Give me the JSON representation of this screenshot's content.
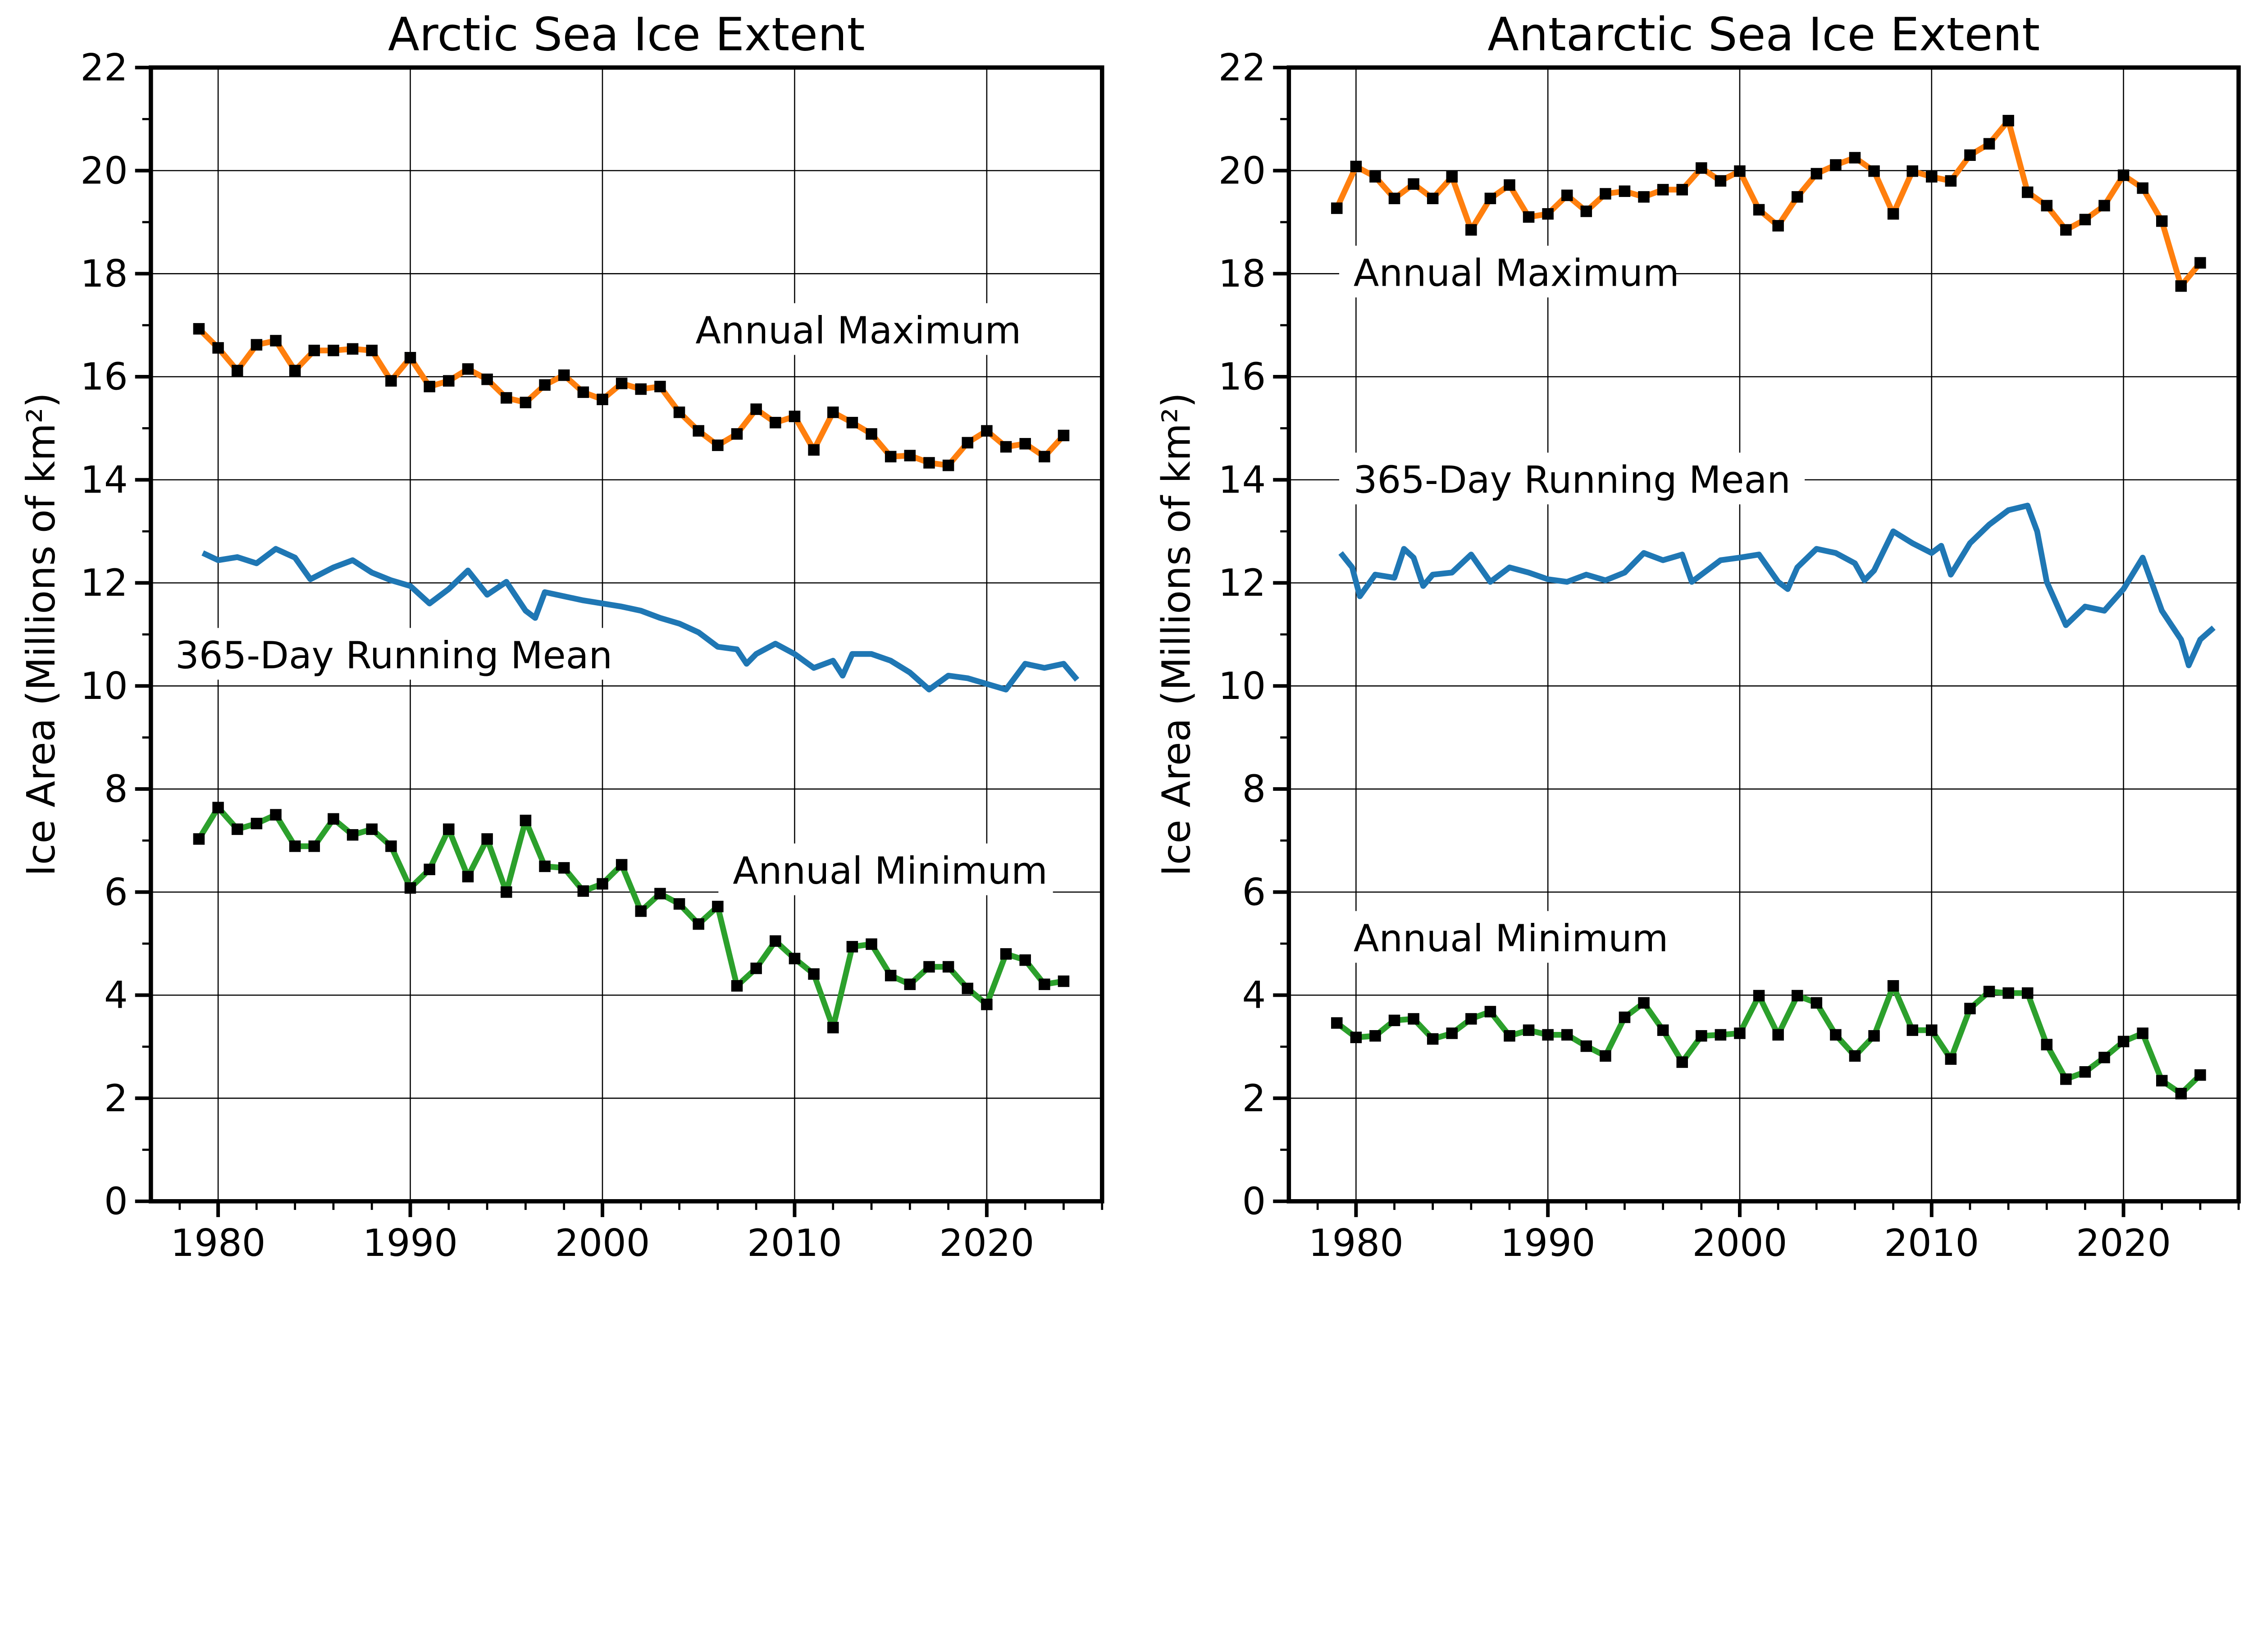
{
  "chart_data": [
    {
      "type": "line",
      "title": "Arctic Sea Ice Extent",
      "ylabel": "Ice Area (Millions of km²)",
      "xlabel": "",
      "xlim": [
        1976.5,
        2026
      ],
      "ylim": [
        0,
        22
      ],
      "xticks": [
        1980,
        1990,
        2000,
        2010,
        2020
      ],
      "yticks": [
        0,
        2,
        4,
        6,
        8,
        10,
        12,
        14,
        16,
        18,
        20,
        22
      ],
      "grid": true,
      "series": [
        {
          "name": "Annual Maximum",
          "color": "#ff7f0e",
          "markers": true,
          "x": [
            1979,
            1980,
            1981,
            1982,
            1983,
            1984,
            1985,
            1986,
            1987,
            1988,
            1989,
            1990,
            1991,
            1992,
            1993,
            1994,
            1995,
            1996,
            1997,
            1998,
            1999,
            2000,
            2001,
            2002,
            2003,
            2004,
            2005,
            2006,
            2007,
            2008,
            2009,
            2010,
            2011,
            2012,
            2013,
            2014,
            2015,
            2016,
            2017,
            2018,
            2019,
            2020,
            2021,
            2022,
            2023,
            2024
          ],
          "y": [
            16.93,
            16.56,
            16.12,
            16.62,
            16.7,
            16.12,
            16.51,
            16.51,
            16.54,
            16.51,
            15.92,
            16.37,
            15.81,
            15.92,
            16.15,
            15.95,
            15.59,
            15.5,
            15.84,
            16.03,
            15.7,
            15.56,
            15.87,
            15.76,
            15.81,
            15.31,
            14.95,
            14.67,
            14.89,
            15.37,
            15.11,
            15.23,
            14.58,
            15.31,
            15.11,
            14.89,
            14.45,
            14.47,
            14.33,
            14.28,
            14.72,
            14.95,
            14.64,
            14.7,
            14.45,
            14.86
          ]
        },
        {
          "name": "365-Day Running Mean",
          "color": "#1f77b4",
          "markers": false,
          "x": [
            1979.2,
            1980,
            1981,
            1982,
            1983,
            1984,
            1984.8,
            1986,
            1987,
            1988,
            1989,
            1990,
            1991,
            1992,
            1993,
            1994,
            1995,
            1996,
            1996.5,
            1997,
            1998,
            1999,
            2000,
            2001,
            2002,
            2003,
            2004,
            2005,
            2006,
            2007,
            2007.5,
            2008,
            2009,
            2010,
            2011,
            2012,
            2012.5,
            2013,
            2014,
            2015,
            2016,
            2017,
            2018,
            2019,
            2020,
            2021,
            2022,
            2023,
            2024,
            2024.7
          ],
          "y": [
            12.58,
            12.44,
            12.5,
            12.38,
            12.66,
            12.49,
            12.07,
            12.3,
            12.44,
            12.2,
            12.05,
            11.94,
            11.6,
            11.88,
            12.24,
            11.77,
            12.02,
            11.46,
            11.32,
            11.82,
            11.74,
            11.66,
            11.6,
            11.54,
            11.46,
            11.32,
            11.21,
            11.04,
            10.76,
            10.71,
            10.43,
            10.62,
            10.82,
            10.62,
            10.35,
            10.49,
            10.2,
            10.62,
            10.62,
            10.49,
            10.26,
            9.93,
            10.2,
            10.15,
            10.04,
            9.93,
            10.43,
            10.35,
            10.43,
            10.12
          ]
        },
        {
          "name": "Annual Minimum",
          "color": "#2ca02c",
          "markers": true,
          "x": [
            1979,
            1980,
            1981,
            1982,
            1983,
            1984,
            1985,
            1986,
            1987,
            1988,
            1989,
            1990,
            1991,
            1992,
            1993,
            1994,
            1995,
            1996,
            1997,
            1998,
            1999,
            2000,
            2001,
            2002,
            2003,
            2004,
            2005,
            2006,
            2007,
            2008,
            2009,
            2010,
            2011,
            2012,
            2013,
            2014,
            2015,
            2016,
            2017,
            2018,
            2019,
            2020,
            2021,
            2022,
            2023,
            2024
          ],
          "y": [
            7.03,
            7.64,
            7.22,
            7.33,
            7.5,
            6.89,
            6.89,
            7.42,
            7.11,
            7.22,
            6.89,
            6.08,
            6.44,
            7.22,
            6.3,
            7.03,
            6.0,
            7.39,
            6.5,
            6.47,
            6.02,
            6.16,
            6.53,
            5.63,
            5.97,
            5.77,
            5.38,
            5.72,
            4.18,
            4.52,
            5.05,
            4.71,
            4.41,
            3.37,
            4.94,
            4.99,
            4.38,
            4.21,
            4.55,
            4.55,
            4.13,
            3.82,
            4.8,
            4.68,
            4.21,
            4.27
          ]
        }
      ],
      "annotations": [
        "Annual Maximum",
        "365-Day Running Mean",
        "Annual Minimum"
      ]
    },
    {
      "type": "line",
      "title": "Antarctic Sea Ice Extent",
      "ylabel": "Ice Area (Millions of km²)",
      "xlabel": "",
      "xlim": [
        1976.5,
        2026
      ],
      "ylim": [
        0,
        22
      ],
      "xticks": [
        1980,
        1990,
        2000,
        2010,
        2020
      ],
      "yticks": [
        0,
        2,
        4,
        6,
        8,
        10,
        12,
        14,
        16,
        18,
        20,
        22
      ],
      "grid": true,
      "series": [
        {
          "name": "Annual Maximum",
          "color": "#ff7f0e",
          "markers": true,
          "x": [
            1979,
            1980,
            1981,
            1982,
            1983,
            1984,
            1985,
            1986,
            1987,
            1988,
            1989,
            1990,
            1991,
            1992,
            1993,
            1994,
            1995,
            1996,
            1997,
            1998,
            1999,
            2000,
            2001,
            2002,
            2003,
            2004,
            2005,
            2006,
            2007,
            2008,
            2009,
            2010,
            2011,
            2012,
            2013,
            2014,
            2015,
            2016,
            2017,
            2018,
            2019,
            2020,
            2021,
            2022,
            2023,
            2024
          ],
          "y": [
            19.27,
            20.08,
            19.88,
            19.46,
            19.74,
            19.46,
            19.88,
            18.85,
            19.46,
            19.72,
            19.1,
            19.16,
            19.52,
            19.21,
            19.55,
            19.6,
            19.49,
            19.63,
            19.63,
            20.05,
            19.8,
            19.99,
            19.24,
            18.93,
            19.49,
            19.94,
            20.11,
            20.25,
            19.99,
            19.16,
            19.99,
            19.88,
            19.8,
            20.3,
            20.52,
            20.97,
            19.58,
            19.32,
            18.85,
            19.05,
            19.32,
            19.91,
            19.66,
            19.02,
            17.76,
            18.21
          ]
        },
        {
          "name": "365-Day Running Mean",
          "color": "#1f77b4",
          "markers": false,
          "x": [
            1979.2,
            1979.8,
            1980.2,
            1981,
            1982,
            1982.5,
            1983,
            1983.5,
            1984,
            1985,
            1986,
            1987,
            1988,
            1989,
            1990,
            1991,
            1992,
            1993,
            1994,
            1995,
            1996,
            1997,
            1997.5,
            1998,
            1999,
            2000,
            2001,
            2002,
            2002.5,
            2003,
            2004,
            2005,
            2006,
            2006.5,
            2007,
            2008,
            2009,
            2010,
            2010.5,
            2011,
            2012,
            2013,
            2014,
            2015,
            2015.5,
            2016,
            2017,
            2018,
            2019,
            2020,
            2021,
            2022,
            2023,
            2023.4,
            2024,
            2024.7
          ],
          "y": [
            12.58,
            12.3,
            11.74,
            12.16,
            12.1,
            12.66,
            12.49,
            11.94,
            12.16,
            12.2,
            12.55,
            12.02,
            12.3,
            12.2,
            12.07,
            12.02,
            12.16,
            12.05,
            12.2,
            12.58,
            12.44,
            12.55,
            12.02,
            12.16,
            12.44,
            12.49,
            12.55,
            12.02,
            11.88,
            12.3,
            12.66,
            12.58,
            12.38,
            12.05,
            12.24,
            13.0,
            12.77,
            12.58,
            12.72,
            12.16,
            12.77,
            13.13,
            13.41,
            13.5,
            13.0,
            12.02,
            11.18,
            11.54,
            11.46,
            11.88,
            12.49,
            11.46,
            10.9,
            10.4,
            10.9,
            11.13
          ]
        },
        {
          "name": "Annual Minimum",
          "color": "#2ca02c",
          "markers": true,
          "x": [
            1979,
            1980,
            1981,
            1982,
            1983,
            1984,
            1985,
            1986,
            1987,
            1988,
            1989,
            1990,
            1991,
            1992,
            1993,
            1994,
            1995,
            1996,
            1997,
            1998,
            1999,
            2000,
            2001,
            2002,
            2003,
            2004,
            2005,
            2006,
            2007,
            2008,
            2009,
            2010,
            2011,
            2012,
            2013,
            2014,
            2015,
            2016,
            2017,
            2018,
            2019,
            2020,
            2021,
            2022,
            2023,
            2024
          ],
          "y": [
            3.46,
            3.18,
            3.21,
            3.51,
            3.54,
            3.15,
            3.26,
            3.54,
            3.68,
            3.21,
            3.32,
            3.23,
            3.23,
            3.01,
            2.82,
            3.57,
            3.85,
            3.32,
            2.7,
            3.21,
            3.23,
            3.26,
            3.99,
            3.23,
            3.99,
            3.85,
            3.23,
            2.82,
            3.21,
            4.18,
            3.32,
            3.32,
            2.76,
            3.74,
            4.07,
            4.04,
            4.04,
            3.04,
            2.37,
            2.51,
            2.79,
            3.1,
            3.26,
            2.34,
            2.09,
            2.45
          ]
        }
      ],
      "annotations": [
        "Annual Maximum",
        "365-Day Running Mean",
        "Annual Minimum"
      ]
    }
  ]
}
